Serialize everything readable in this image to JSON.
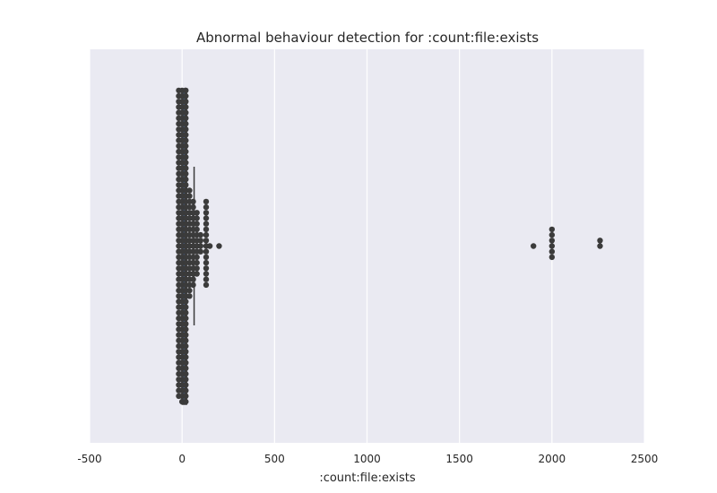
{
  "chart_data": {
    "type": "scatter",
    "subtype": "swarm-over-box",
    "title": "Abnormal behaviour detection for :count:file:exists",
    "xlabel": ":count:file:exists",
    "ylabel": "",
    "xlim": [
      -500,
      2500
    ],
    "xticks": [
      -500,
      0,
      500,
      1000,
      1500,
      2000,
      2500
    ],
    "grid": true,
    "background_color": "#eaeaf2",
    "grid_color": "#ffffff",
    "point_color": "#3b3b3b",
    "box_color": "#3b3b3b",
    "box": {
      "whisker_low": 0,
      "q1": 1,
      "median": 4,
      "q3": 24,
      "whisker_high": 65
    },
    "clusters": [
      {
        "x": 0,
        "count": 170
      },
      {
        "x": 20,
        "count": 60
      },
      {
        "x": 40,
        "count": 20
      },
      {
        "x": 60,
        "count": 16
      },
      {
        "x": 80,
        "count": 12
      },
      {
        "x": 100,
        "count": 4
      },
      {
        "x": 130,
        "count": 16
      },
      {
        "x": 150,
        "count": 1
      },
      {
        "x": 200,
        "count": 1
      },
      {
        "x": 1900,
        "count": 1
      },
      {
        "x": 2000,
        "count": 6
      },
      {
        "x": 2260,
        "count": 2
      }
    ]
  }
}
